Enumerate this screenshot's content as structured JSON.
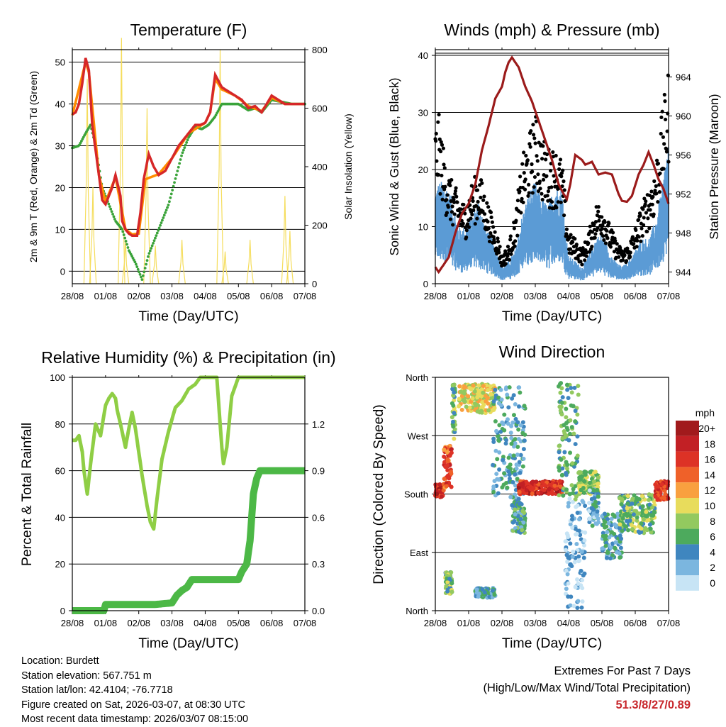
{
  "chart_data": [
    {
      "type": "line",
      "title": "Temperature (F)",
      "xlabel": "Time (Day/UTC)",
      "ylabel": "2m & 9m T (Red, Orange) & 2m Td (Green)",
      "y2label": "Solar Insolation (Yellow)",
      "x_ticks": [
        "28/08",
        "01/08",
        "02/08",
        "03/08",
        "04/08",
        "05/08",
        "06/08",
        "07/08"
      ],
      "ylim": [
        -3,
        53
      ],
      "yticks": [
        0,
        10,
        20,
        30,
        40,
        50
      ],
      "y2lim": [
        0,
        800
      ],
      "y2ticks": [
        0,
        200,
        400,
        600,
        800
      ],
      "series": [
        {
          "name": "2m T",
          "color": "#d62728",
          "x": [
            0,
            0.1,
            0.2,
            0.3,
            0.4,
            0.5,
            0.6,
            0.8,
            0.9,
            1.0,
            1.2,
            1.3,
            1.45,
            1.5,
            1.6,
            1.7,
            1.8,
            1.95,
            2.05,
            2.15,
            2.3,
            2.45,
            2.6,
            2.8,
            3.0,
            3.2,
            3.5,
            3.7,
            3.85,
            4.0,
            4.15,
            4.3,
            4.5,
            4.7,
            4.9,
            5.1,
            5.3,
            5.5,
            5.7,
            6.0,
            6.2,
            6.4,
            6.6,
            7.0
          ],
          "values": [
            37.5,
            38,
            40,
            45,
            51,
            48,
            35,
            23,
            17,
            16,
            20,
            23,
            18,
            12,
            10,
            9,
            8.5,
            8.5,
            14,
            22,
            28,
            25,
            23,
            24,
            27,
            30,
            33,
            35,
            35,
            35.5,
            38,
            47,
            44,
            43,
            42,
            41,
            39,
            39.5,
            38,
            42,
            41,
            40,
            40,
            40
          ]
        },
        {
          "name": "9m T",
          "color": "#ff8c00",
          "x": [
            0,
            0.4,
            0.5,
            0.8,
            1.0,
            1.3,
            1.6,
            1.8,
            2.0,
            2.2,
            2.6,
            3.0,
            3.5,
            4.0,
            4.15,
            4.3,
            4.5,
            4.9,
            5.3,
            5.7,
            6.0,
            6.4,
            7.0
          ],
          "values": [
            37.3,
            50,
            47.5,
            23,
            16.5,
            22.5,
            10,
            8.8,
            9,
            22,
            23.2,
            27,
            33,
            35.5,
            38,
            46,
            43.5,
            42,
            39.5,
            38.3,
            41.5,
            40,
            40
          ]
        },
        {
          "name": "2m Td",
          "color": "#3aa33a",
          "x": [
            0,
            0.2,
            0.4,
            0.55,
            0.7,
            0.9,
            1.1,
            1.3,
            1.5,
            1.7,
            1.9,
            2.1,
            2.3,
            2.5,
            2.7,
            2.9,
            3.1,
            3.3,
            3.5,
            3.7,
            3.9,
            4.1,
            4.3,
            4.5,
            4.7,
            5.0,
            5.3,
            5.5,
            5.7,
            6.0,
            6.3,
            6.6,
            7.0
          ],
          "values": [
            29.5,
            30,
            33,
            35,
            30,
            20,
            16,
            12,
            10,
            5,
            2,
            -2,
            4,
            8,
            12,
            16,
            22,
            28,
            32,
            34.5,
            34,
            35,
            37,
            40,
            40,
            40,
            38.5,
            39,
            38,
            41,
            40.5,
            40,
            40
          ]
        }
      ],
      "insolation": {
        "name": "Solar Insolation",
        "color": "#f5dd5c",
        "peaks": [
          {
            "x": 0.45,
            "v": 700
          },
          {
            "x": 0.62,
            "v": 330
          },
          {
            "x": 1.48,
            "v": 840
          },
          {
            "x": 1.6,
            "v": 150
          },
          {
            "x": 2.25,
            "v": 600
          },
          {
            "x": 2.5,
            "v": 130
          },
          {
            "x": 3.3,
            "v": 150
          },
          {
            "x": 4.45,
            "v": 800
          },
          {
            "x": 4.6,
            "v": 110
          },
          {
            "x": 5.35,
            "v": 150
          },
          {
            "x": 6.4,
            "v": 300
          },
          {
            "x": 6.55,
            "v": 180
          }
        ]
      }
    },
    {
      "type": "scatter",
      "title": "Winds (mph) & Pressure (mb)",
      "xlabel": "Time (Day/UTC)",
      "ylabel": "Sonic Wind & Gust (Blue, Black)",
      "y2label": "Station Pressure (Maroon)",
      "x_ticks": [
        "28/08",
        "01/08",
        "02/08",
        "03/08",
        "04/08",
        "05/08",
        "06/08",
        "07/08"
      ],
      "ylim": [
        0,
        41
      ],
      "yticks": [
        0,
        10,
        20,
        30,
        40
      ],
      "y2lim": [
        942.8,
        966.8
      ],
      "y2ticks": [
        944,
        948,
        952,
        956,
        960,
        964
      ],
      "wind_envelope": {
        "x": [
          0,
          0.1,
          0.3,
          0.5,
          0.7,
          0.9,
          1.1,
          1.3,
          1.5,
          1.7,
          1.9,
          2.0,
          2.2,
          2.4,
          2.6,
          2.8,
          3.0,
          3.2,
          3.4,
          3.6,
          3.8,
          3.9,
          4.0,
          4.2,
          4.4,
          4.6,
          4.8,
          5.0,
          5.2,
          5.4,
          5.6,
          5.8,
          6.0,
          6.2,
          6.4,
          6.6,
          6.8,
          7.0
        ],
        "values": [
          17,
          18,
          18,
          15,
          10,
          10,
          12,
          15,
          10,
          8,
          5,
          3,
          4,
          6,
          12,
          16,
          18,
          15,
          14,
          18,
          17,
          10,
          5,
          4,
          3,
          5,
          8,
          9,
          6,
          4,
          3,
          4,
          6,
          8,
          8,
          11,
          17,
          26
        ]
      },
      "gust_envelope": {
        "x": [
          0,
          0.1,
          0.3,
          0.5,
          0.7,
          0.9,
          1.1,
          1.3,
          1.5,
          1.7,
          1.9,
          2.0,
          2.2,
          2.4,
          2.6,
          2.8,
          3.0,
          3.2,
          3.4,
          3.6,
          3.8,
          3.9,
          4.0,
          4.2,
          4.4,
          4.6,
          4.8,
          5.0,
          5.2,
          5.4,
          5.6,
          5.8,
          6.0,
          6.2,
          6.4,
          6.6,
          6.8,
          7.0
        ],
        "values": [
          28,
          30,
          22,
          18,
          16,
          14,
          18,
          20,
          16,
          12,
          8,
          5,
          7,
          12,
          22,
          26,
          30,
          26,
          24,
          24,
          22,
          15,
          9,
          8,
          6,
          9,
          14,
          15,
          11,
          8,
          6,
          7,
          10,
          14,
          17,
          21,
          30,
          38
        ]
      },
      "pressure": {
        "name": "Station Pressure",
        "color": "#9b1b1b",
        "x": [
          0,
          0.1,
          0.2,
          0.4,
          0.6,
          0.8,
          1.0,
          1.2,
          1.4,
          1.6,
          1.8,
          2.0,
          2.1,
          2.2,
          2.3,
          2.5,
          2.7,
          2.9,
          3.1,
          3.3,
          3.5,
          3.7,
          3.85,
          3.95,
          4.05,
          4.2,
          4.4,
          4.5,
          4.7,
          4.9,
          5.1,
          5.3,
          5.5,
          5.6,
          5.75,
          5.9,
          6.1,
          6.25,
          6.4,
          6.55,
          6.7,
          6.85,
          7.0
        ],
        "values": [
          944.5,
          944,
          944.5,
          945.5,
          948,
          950,
          951,
          953,
          956.5,
          959,
          961.8,
          963,
          964.5,
          965.5,
          966,
          965,
          963,
          961.5,
          959.5,
          957.5,
          955.5,
          953,
          952,
          951.5,
          953,
          956,
          955.5,
          955,
          955.3,
          954,
          954.2,
          954,
          952,
          951.3,
          951.2,
          951.8,
          954,
          955,
          956.3,
          955,
          953.5,
          952.5,
          951
        ]
      }
    },
    {
      "type": "line",
      "title": "Relative Humidity (%) & Precipitation (in)",
      "xlabel": "Time (Day/UTC)",
      "ylabel": "Percent & Total Rainfall",
      "x_ticks": [
        "28/08",
        "01/08",
        "02/08",
        "03/08",
        "04/08",
        "05/08",
        "06/08",
        "07/08"
      ],
      "ylim": [
        0,
        100
      ],
      "yticks": [
        0,
        20,
        40,
        60,
        80,
        100
      ],
      "y2lim": [
        0,
        1.5
      ],
      "y2ticks": [
        "0.0",
        "0.3",
        "0.6",
        "0.9",
        "1.2"
      ],
      "series": [
        {
          "name": "Relative Humidity",
          "color": "#8fce45",
          "x": [
            0,
            0.1,
            0.2,
            0.3,
            0.35,
            0.45,
            0.55,
            0.7,
            0.85,
            1.0,
            1.1,
            1.2,
            1.3,
            1.35,
            1.45,
            1.6,
            1.7,
            1.8,
            1.9,
            2.0,
            2.1,
            2.25,
            2.35,
            2.45,
            2.55,
            2.7,
            2.9,
            3.1,
            3.3,
            3.5,
            3.7,
            3.85,
            4.0,
            4.2,
            4.35,
            4.5,
            4.55,
            4.65,
            4.8,
            5.0,
            7.0
          ],
          "values": [
            73,
            73,
            75,
            68,
            60,
            50,
            63,
            80,
            75,
            88,
            91,
            93,
            91,
            86,
            80,
            70,
            78,
            85,
            78,
            68,
            58,
            45,
            38,
            35,
            48,
            65,
            77,
            87,
            90,
            95,
            97,
            100,
            100,
            100,
            100,
            70,
            63,
            70,
            92,
            100,
            100
          ]
        },
        {
          "name": "Total Precipitation",
          "color": "#4cb846",
          "x": [
            0,
            0.95,
            1.0,
            2.5,
            3.0,
            3.15,
            3.3,
            3.45,
            3.6,
            3.8,
            4.0,
            4.2,
            4.4,
            4.6,
            4.8,
            5.0,
            5.1,
            5.25,
            5.35,
            5.45,
            5.55,
            5.65,
            5.8,
            6.0,
            7.0
          ],
          "values": [
            0,
            0,
            0.04,
            0.04,
            0.05,
            0.1,
            0.13,
            0.15,
            0.2,
            0.2,
            0.2,
            0.2,
            0.2,
            0.2,
            0.2,
            0.2,
            0.25,
            0.3,
            0.45,
            0.75,
            0.85,
            0.9,
            0.9,
            0.9,
            0.9
          ]
        }
      ]
    },
    {
      "type": "scatter",
      "title": "Wind Direction",
      "xlabel": "Time (Day/UTC)",
      "ylabel": "Direction (Colored By Speed)",
      "x_ticks": [
        "28/08",
        "01/08",
        "02/08",
        "03/08",
        "04/08",
        "05/08",
        "06/08",
        "07/08"
      ],
      "ylim": [
        0,
        360
      ],
      "y_tick_labels": [
        "North",
        "East",
        "South",
        "West",
        "North"
      ],
      "colorbar_title": "mph",
      "colorbar_labels": [
        "20+",
        "18",
        "16",
        "14",
        "12",
        "10",
        "8",
        "6",
        "4",
        "2",
        "0"
      ],
      "colorbar_colors": [
        "#a11a1c",
        "#c22025",
        "#dd3226",
        "#ef6129",
        "#f9a03f",
        "#e8dc5c",
        "#93c95f",
        "#4daa5d",
        "#3f86bf",
        "#7bb6df",
        "#c7e4f5"
      ],
      "clusters": [
        {
          "x0": 0,
          "x1": 0.25,
          "y0": 175,
          "y1": 195,
          "speed": 17
        },
        {
          "x0": 0.25,
          "x1": 0.5,
          "y0": 190,
          "y1": 255,
          "speed": 15
        },
        {
          "x0": 0.3,
          "x1": 0.5,
          "y0": 25,
          "y1": 60,
          "speed": 7
        },
        {
          "x0": 0.5,
          "x1": 0.6,
          "y0": 265,
          "y1": 350,
          "speed": 7
        },
        {
          "x0": 0.7,
          "x1": 1.8,
          "y0": 305,
          "y1": 350,
          "speed": 10
        },
        {
          "x0": 1.2,
          "x1": 1.8,
          "y0": 20,
          "y1": 35,
          "speed": 4
        },
        {
          "x0": 1.7,
          "x1": 2.7,
          "y0": 170,
          "y1": 345,
          "speed": 4
        },
        {
          "x0": 2.5,
          "x1": 3.8,
          "y0": 180,
          "y1": 200,
          "speed": 17
        },
        {
          "x0": 2.3,
          "x1": 2.7,
          "y0": 120,
          "y1": 170,
          "speed": 5
        },
        {
          "x0": 3.7,
          "x1": 4.3,
          "y0": 170,
          "y1": 355,
          "speed": 6
        },
        {
          "x0": 3.9,
          "x1": 4.5,
          "y0": 0,
          "y1": 180,
          "speed": 2
        },
        {
          "x0": 4.3,
          "x1": 4.9,
          "y0": 180,
          "y1": 215,
          "speed": 8
        },
        {
          "x0": 4.6,
          "x1": 4.9,
          "y0": 130,
          "y1": 190,
          "speed": 3
        },
        {
          "x0": 5.0,
          "x1": 5.6,
          "y0": 80,
          "y1": 150,
          "speed": 4
        },
        {
          "x0": 5.5,
          "x1": 6.6,
          "y0": 120,
          "y1": 180,
          "speed": 7
        },
        {
          "x0": 6.6,
          "x1": 7.0,
          "y0": 170,
          "y1": 200,
          "speed": 16
        }
      ]
    }
  ],
  "station": {
    "location": "Location: Burdett",
    "elevation": "Station elevation: 567.751 m",
    "latlon": "Station lat/lon: 42.4104; -76.7718",
    "created": "Figure created on Sat, 2026-03-07, at 08:30 UTC",
    "recent": "Most recent data timestamp: 2026/03/07 08:15:00"
  },
  "extremes": {
    "line1": "Extremes For Past 7 Days",
    "line2": "(High/Low/Max Wind/Total Precipitation)",
    "values": "51.3/8/27/0.89"
  }
}
